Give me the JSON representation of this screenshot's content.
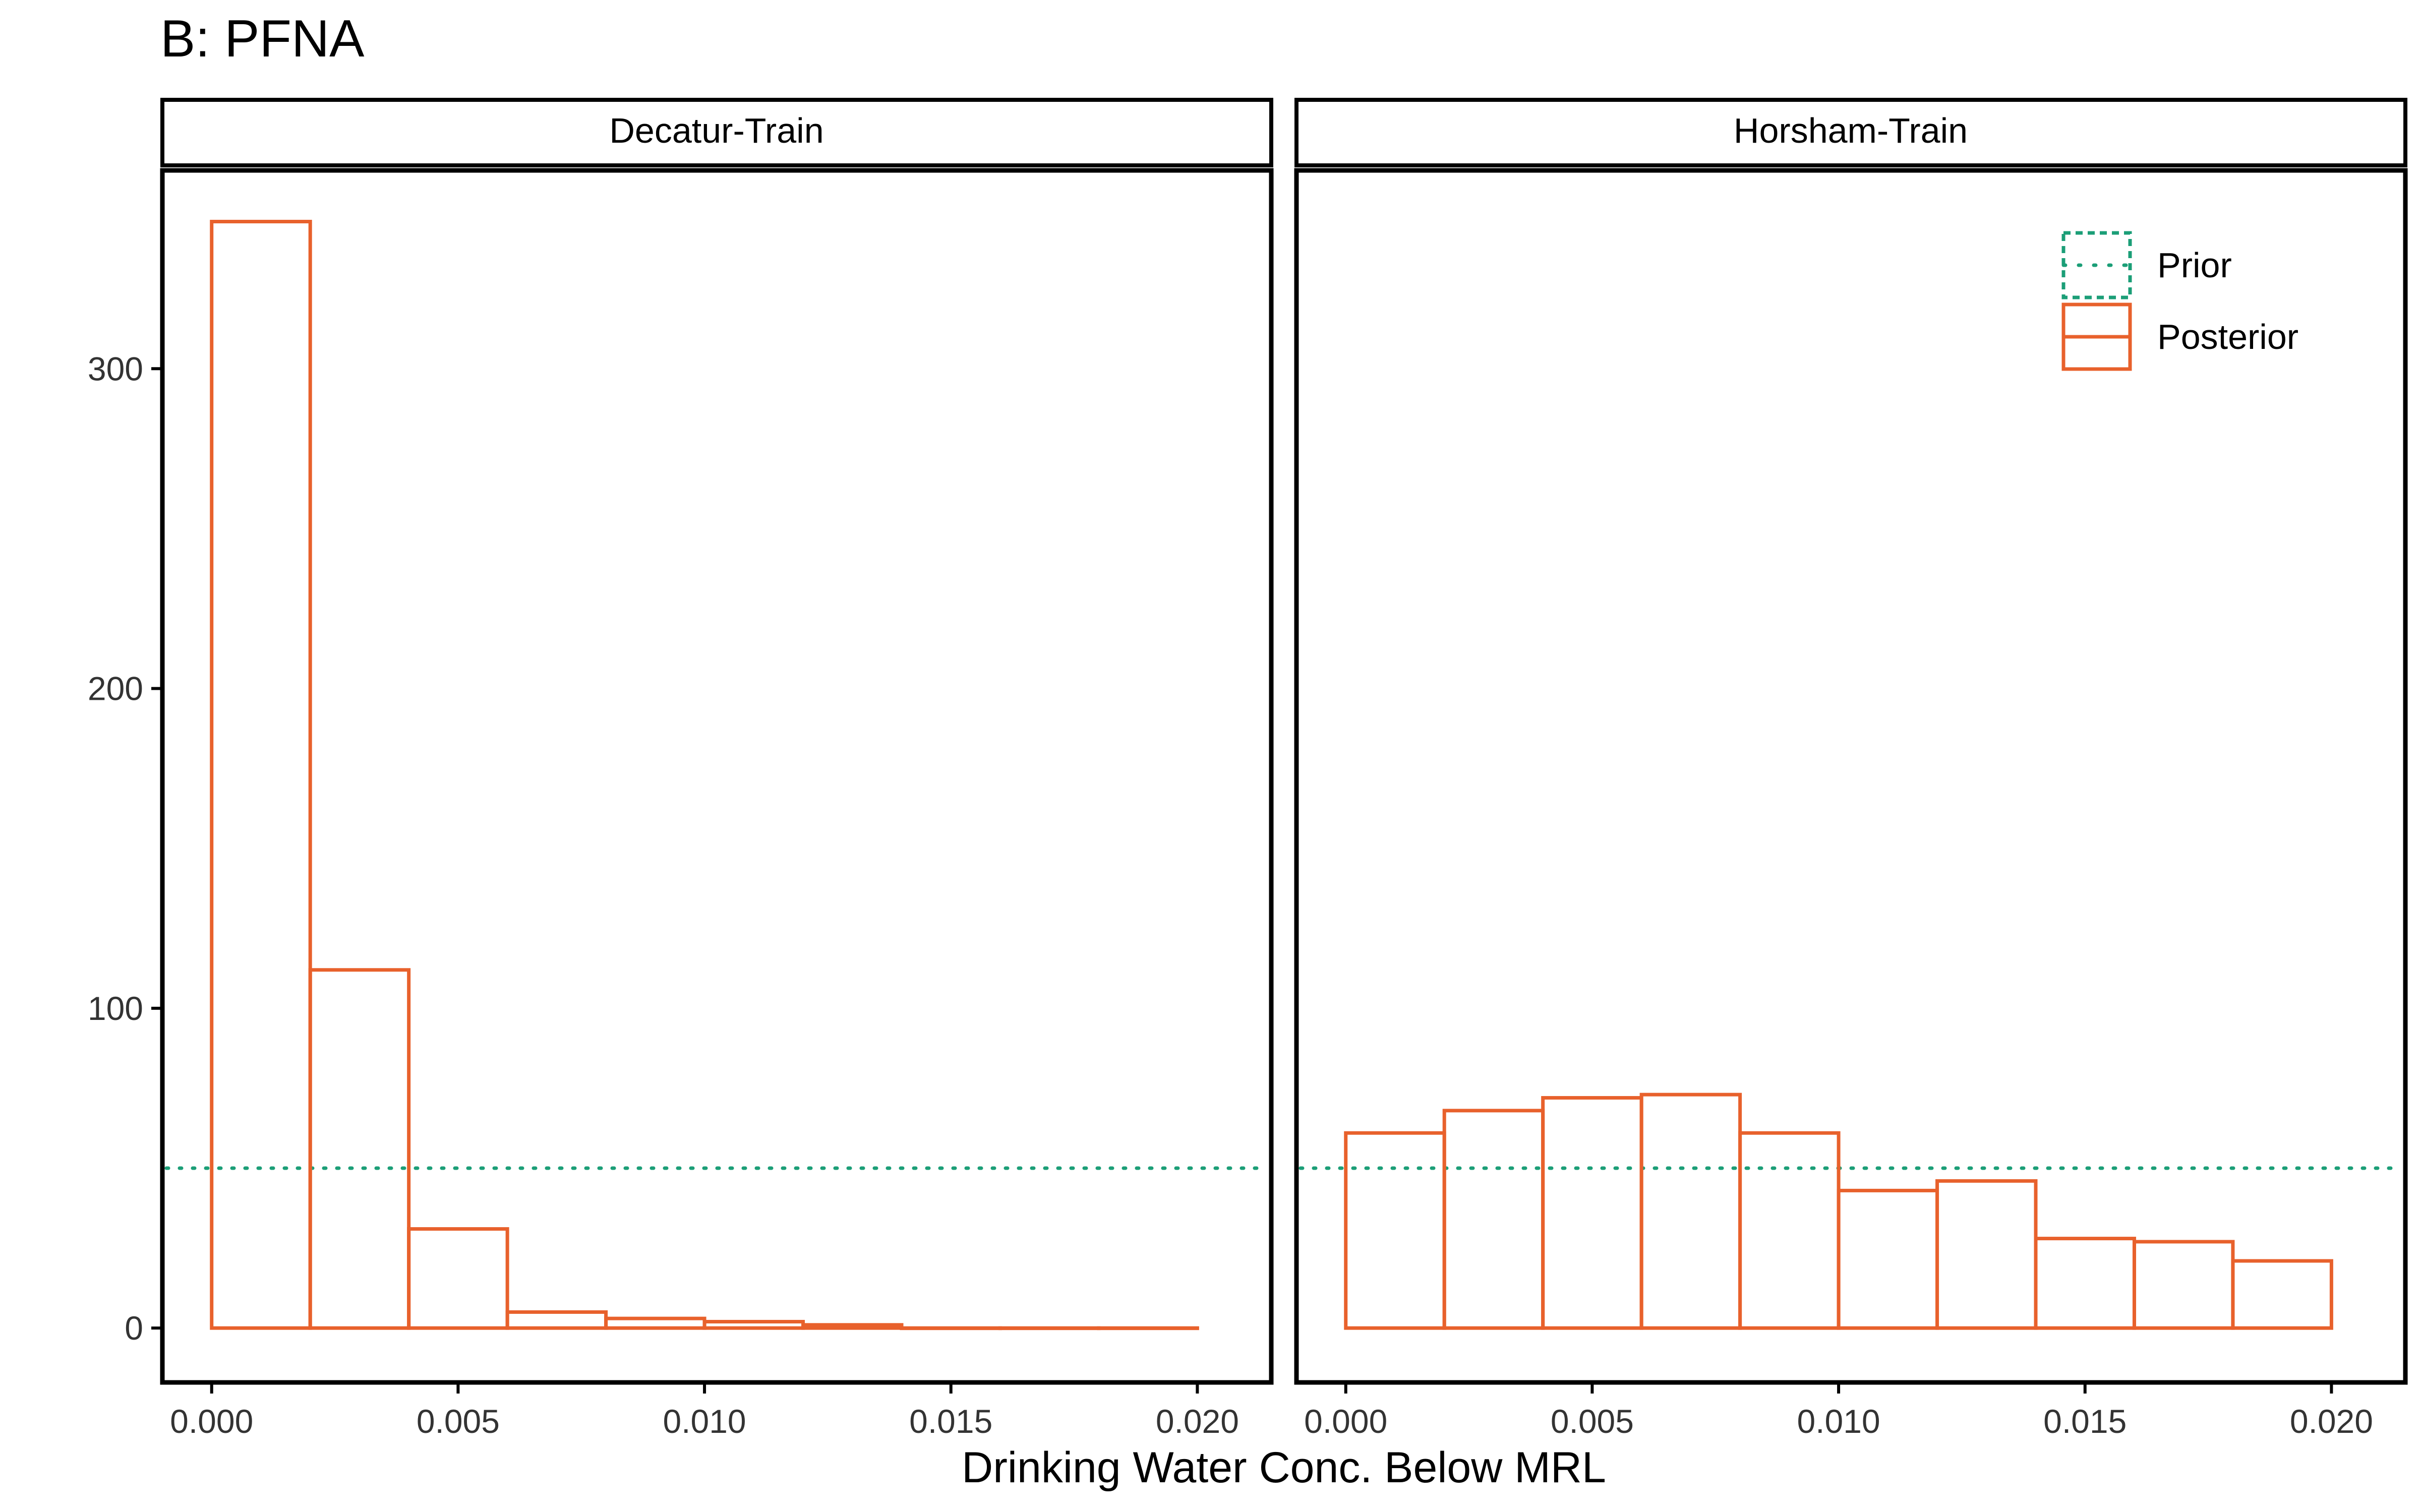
{
  "title": "B: PFNA",
  "colors": {
    "prior": "#1b9e77",
    "posterior": "#e8612c",
    "axis": "#000000",
    "tick_text": "#333333"
  },
  "chart_data": {
    "type": "bar",
    "subtype": "faceted-histogram",
    "xlabel": "Drinking Water Conc. Below MRL",
    "ylabel": "",
    "xlim": [
      -0.001,
      0.0215
    ],
    "ylim": [
      -17,
      362
    ],
    "x_ticks": [
      "0.000",
      "0.005",
      "0.010",
      "0.015",
      "0.020"
    ],
    "x_tick_values": [
      0,
      0.005,
      0.01,
      0.015,
      0.02
    ],
    "y_ticks": [
      "0",
      "100",
      "200",
      "300"
    ],
    "y_tick_values": [
      0,
      100,
      200,
      300
    ],
    "grid": false,
    "bin_width": 0.002,
    "legend": {
      "position": "top-right of right panel",
      "items": [
        {
          "label": "Prior",
          "style": "dotted",
          "color": "#1b9e77"
        },
        {
          "label": "Posterior",
          "style": "solid",
          "color": "#e8612c"
        }
      ]
    },
    "panels": [
      {
        "strip_label": "Decatur-Train",
        "prior_level": 50,
        "posterior_bins": [
          {
            "x0": 0.0,
            "x1": 0.002,
            "count": 346
          },
          {
            "x0": 0.002,
            "x1": 0.004,
            "count": 112
          },
          {
            "x0": 0.004,
            "x1": 0.006,
            "count": 31
          },
          {
            "x0": 0.006,
            "x1": 0.008,
            "count": 5
          },
          {
            "x0": 0.008,
            "x1": 0.01,
            "count": 3
          },
          {
            "x0": 0.01,
            "x1": 0.012,
            "count": 2
          },
          {
            "x0": 0.012,
            "x1": 0.014,
            "count": 1
          },
          {
            "x0": 0.014,
            "x1": 0.016,
            "count": 0
          },
          {
            "x0": 0.016,
            "x1": 0.018,
            "count": 0
          },
          {
            "x0": 0.018,
            "x1": 0.02,
            "count": 0
          }
        ]
      },
      {
        "strip_label": "Horsham-Train",
        "prior_level": 50,
        "posterior_bins": [
          {
            "x0": 0.0,
            "x1": 0.002,
            "count": 61
          },
          {
            "x0": 0.002,
            "x1": 0.004,
            "count": 68
          },
          {
            "x0": 0.004,
            "x1": 0.006,
            "count": 72
          },
          {
            "x0": 0.006,
            "x1": 0.008,
            "count": 73
          },
          {
            "x0": 0.008,
            "x1": 0.01,
            "count": 61
          },
          {
            "x0": 0.01,
            "x1": 0.012,
            "count": 43
          },
          {
            "x0": 0.012,
            "x1": 0.014,
            "count": 46
          },
          {
            "x0": 0.014,
            "x1": 0.016,
            "count": 28
          },
          {
            "x0": 0.016,
            "x1": 0.018,
            "count": 27
          },
          {
            "x0": 0.018,
            "x1": 0.02,
            "count": 21
          }
        ]
      }
    ]
  }
}
